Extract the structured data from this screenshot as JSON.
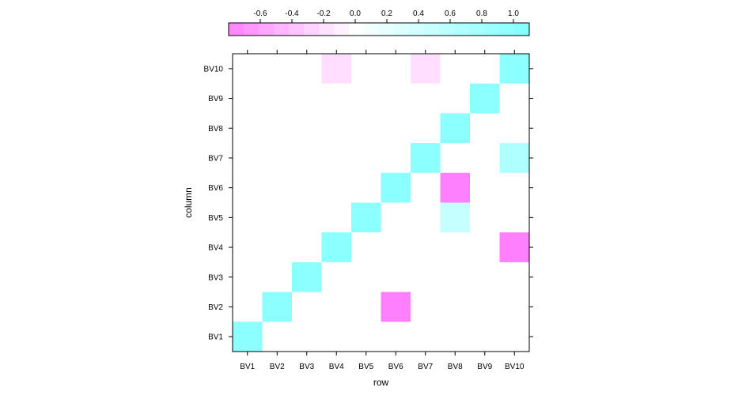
{
  "chart_data": {
    "type": "heatmap",
    "xlabel": "row",
    "ylabel": "column",
    "x_categories": [
      "BV1",
      "BV2",
      "BV3",
      "BV4",
      "BV5",
      "BV6",
      "BV7",
      "BV8",
      "BV9",
      "BV10"
    ],
    "y_categories": [
      "BV1",
      "BV2",
      "BV3",
      "BV4",
      "BV5",
      "BV6",
      "BV7",
      "BV8",
      "BV9",
      "BV10"
    ],
    "cells": [
      {
        "x": "BV1",
        "y": "BV1",
        "value": 1.0
      },
      {
        "x": "BV2",
        "y": "BV2",
        "value": 1.0
      },
      {
        "x": "BV3",
        "y": "BV3",
        "value": 1.0
      },
      {
        "x": "BV4",
        "y": "BV4",
        "value": 1.0
      },
      {
        "x": "BV5",
        "y": "BV5",
        "value": 1.0
      },
      {
        "x": "BV6",
        "y": "BV6",
        "value": 1.0
      },
      {
        "x": "BV7",
        "y": "BV7",
        "value": 1.0
      },
      {
        "x": "BV8",
        "y": "BV8",
        "value": 1.0
      },
      {
        "x": "BV9",
        "y": "BV9",
        "value": 1.0
      },
      {
        "x": "BV10",
        "y": "BV10",
        "value": 1.0
      },
      {
        "x": "BV6",
        "y": "BV2",
        "value": -0.8
      },
      {
        "x": "BV10",
        "y": "BV4",
        "value": -0.9
      },
      {
        "x": "BV8",
        "y": "BV5",
        "value": 0.5
      },
      {
        "x": "BV8",
        "y": "BV6",
        "value": -0.8
      },
      {
        "x": "BV10",
        "y": "BV7",
        "value": 0.7
      },
      {
        "x": "BV4",
        "y": "BV10",
        "value": -0.2
      },
      {
        "x": "BV7",
        "y": "BV10",
        "value": -0.2
      }
    ],
    "colorkey": {
      "ticks": [
        -0.6,
        -0.4,
        -0.2,
        0.0,
        0.2,
        0.4,
        0.6,
        0.8,
        1.0
      ],
      "tick_labels": [
        "-0.6",
        "-0.4",
        "-0.2",
        "0.0",
        "0.2",
        "0.4",
        "0.6",
        "0.8",
        "1.0"
      ],
      "range": [
        -0.8,
        1.1
      ],
      "breaks": 20,
      "low_color": "#ff80ff",
      "mid_color": "#ffffff",
      "high_color": "#80ffff",
      "position": "top"
    },
    "grid": false
  }
}
